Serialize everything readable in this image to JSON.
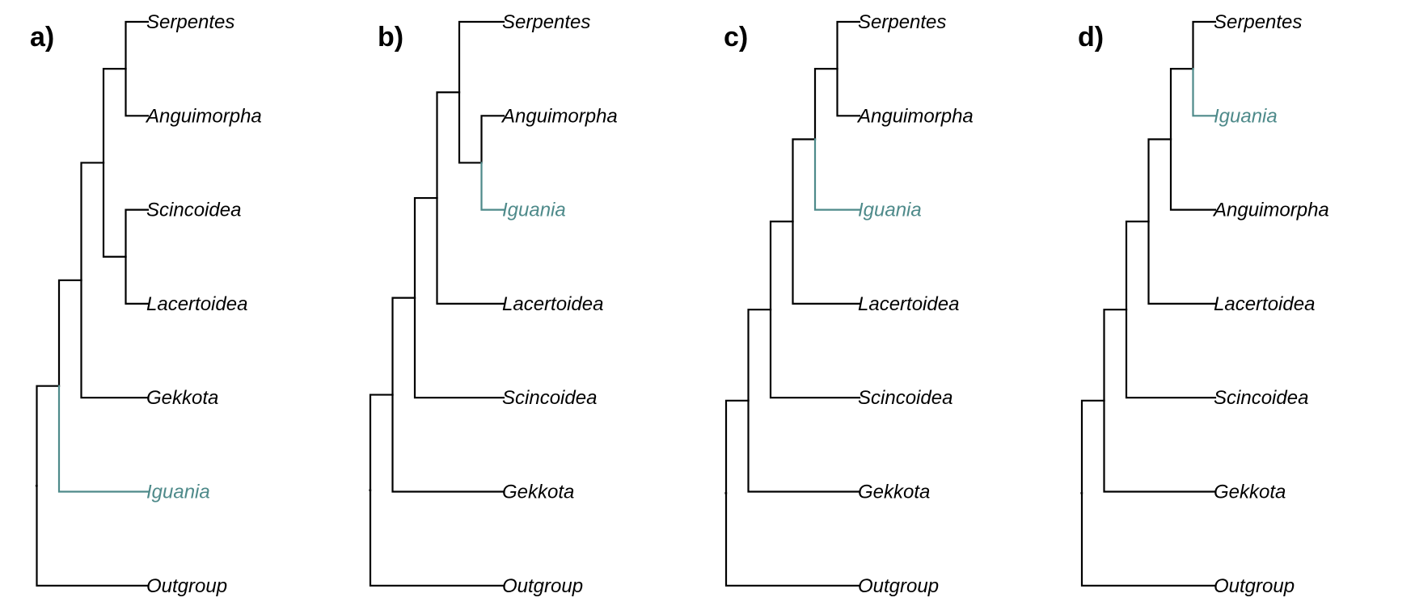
{
  "colors": {
    "default": "#000000",
    "highlight": "#4e8a8a"
  },
  "highlight_taxon": "Iguania",
  "panels": [
    {
      "label": "a)",
      "tips": [
        "Serpentes",
        "Anguimorpha",
        "Scincoidea",
        "Lacertoidea",
        "Gekkota",
        "Iguania",
        "Outgroup"
      ],
      "tree": [
        [
          [
            [
              [
                "Serpentes",
                "Anguimorpha"
              ],
              [
                "Scincoidea",
                "Lacertoidea"
              ]
            ],
            "Gekkota"
          ],
          "Iguania"
        ],
        "Outgroup"
      ]
    },
    {
      "label": "b)",
      "tips": [
        "Serpentes",
        "Anguimorpha",
        "Iguania",
        "Lacertoidea",
        "Scincoidea",
        "Gekkota",
        "Outgroup"
      ],
      "tree": [
        [
          [
            [
              [
                "Serpentes",
                [
                  "Anguimorpha",
                  "Iguania"
                ]
              ],
              "Lacertoidea"
            ],
            "Scincoidea"
          ],
          "Gekkota"
        ],
        "Outgroup"
      ]
    },
    {
      "label": "c)",
      "tips": [
        "Serpentes",
        "Anguimorpha",
        "Iguania",
        "Lacertoidea",
        "Scincoidea",
        "Gekkota",
        "Outgroup"
      ],
      "tree": [
        [
          [
            [
              [
                [
                  "Serpentes",
                  "Anguimorpha"
                ],
                "Iguania"
              ],
              "Lacertoidea"
            ],
            "Scincoidea"
          ],
          "Gekkota"
        ],
        "Outgroup"
      ]
    },
    {
      "label": "d)",
      "tips": [
        "Serpentes",
        "Iguania",
        "Anguimorpha",
        "Lacertoidea",
        "Scincoidea",
        "Gekkota",
        "Outgroup"
      ],
      "tree": [
        [
          [
            [
              [
                [
                  "Serpentes",
                  "Iguania"
                ],
                "Anguimorpha"
              ],
              "Lacertoidea"
            ],
            "Scincoidea"
          ],
          "Gekkota"
        ],
        "Outgroup"
      ]
    }
  ]
}
